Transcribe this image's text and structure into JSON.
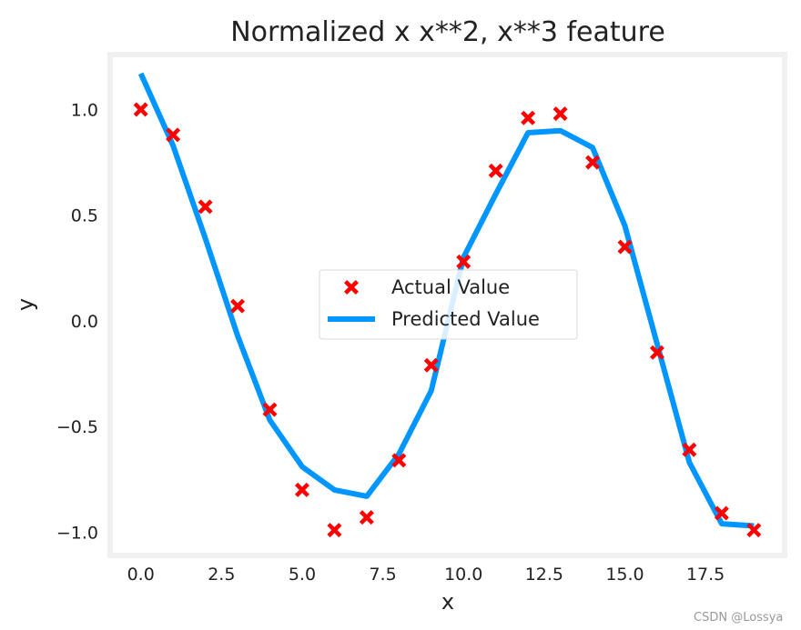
{
  "chart_data": {
    "type": "line",
    "title": "Normalized x x**2, x**3 feature",
    "xlabel": "x",
    "ylabel": "y",
    "xlim": [
      -0.95,
      19.95
    ],
    "ylim": [
      -1.11,
      1.26
    ],
    "xticks": [
      0.0,
      2.5,
      5.0,
      7.5,
      10.0,
      12.5,
      15.0,
      17.5
    ],
    "xtick_labels": [
      "0.0",
      "2.5",
      "5.0",
      "7.5",
      "10.0",
      "12.5",
      "15.0",
      "17.5"
    ],
    "yticks": [
      1.0,
      0.5,
      0.0,
      -0.5,
      -1.0
    ],
    "ytick_labels": [
      "1.0",
      "0.5",
      "0.0",
      "−0.5",
      "−1.0"
    ],
    "grid": false,
    "legend_position": "center",
    "series": [
      {
        "name": "Actual Value",
        "kind": "scatter",
        "marker": "X",
        "color": "#ff0000",
        "x": [
          0,
          1,
          2,
          3,
          4,
          5,
          6,
          7,
          8,
          9,
          10,
          11,
          12,
          13,
          14,
          15,
          16,
          17,
          18,
          19
        ],
        "y": [
          1.0,
          0.88,
          0.54,
          0.07,
          -0.42,
          -0.8,
          -0.99,
          -0.93,
          -0.66,
          -0.21,
          0.28,
          0.71,
          0.96,
          0.98,
          0.75,
          0.35,
          -0.15,
          -0.61,
          -0.91,
          -0.99
        ]
      },
      {
        "name": "Predicted Value",
        "kind": "line",
        "color": "#0096ff",
        "x": [
          0,
          1,
          2,
          3,
          4,
          5,
          6,
          7,
          8,
          9,
          10,
          11,
          12,
          13,
          14,
          15,
          16,
          17,
          18,
          19
        ],
        "y": [
          1.17,
          0.83,
          0.39,
          -0.07,
          -0.47,
          -0.69,
          -0.8,
          -0.83,
          -0.63,
          -0.33,
          0.3,
          0.6,
          0.89,
          0.9,
          0.82,
          0.45,
          -0.11,
          -0.67,
          -0.96,
          -0.97
        ]
      }
    ]
  },
  "watermark": "CSDN @Lossya"
}
